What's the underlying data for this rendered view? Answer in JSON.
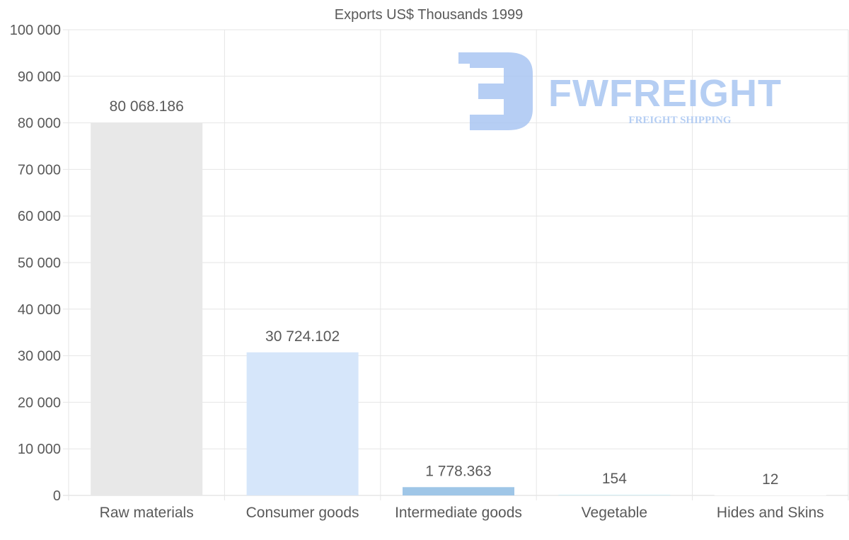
{
  "chart_data": {
    "type": "bar",
    "title": "Exports US$ Thousands 1999",
    "categories": [
      "Raw materials",
      "Consumer goods",
      "Intermediate goods",
      "Vegetable",
      "Hides and Skins"
    ],
    "values": [
      80068.186,
      30724.102,
      1778.363,
      154,
      12
    ],
    "value_labels": [
      "80 068.186",
      "30 724.102",
      "1 778.363",
      "154",
      "12"
    ],
    "bar_colors": [
      "#e8e8e8",
      "#d6e6fa",
      "#9fc6e7",
      "#d3eef4",
      "#ffffff"
    ],
    "ylim": [
      0,
      100000
    ],
    "yticks": [
      0,
      10000,
      20000,
      30000,
      40000,
      50000,
      60000,
      70000,
      80000,
      90000,
      100000
    ],
    "ytick_labels": [
      "0",
      "10 000",
      "20 000",
      "30 000",
      "40 000",
      "50 000",
      "60 000",
      "70 000",
      "80 000",
      "90 000",
      "100 000"
    ],
    "xlabel": "",
    "ylabel": "",
    "grid": true
  },
  "watermark": {
    "brand": "FWFREIGHT",
    "tagline": "FREIGHT SHIPPING",
    "icon": "fw-logo-icon",
    "color": "#a9c6f2"
  },
  "colors": {
    "grid": "#e6e6e6",
    "axis": "#d9d9d9",
    "text": "#595959"
  }
}
